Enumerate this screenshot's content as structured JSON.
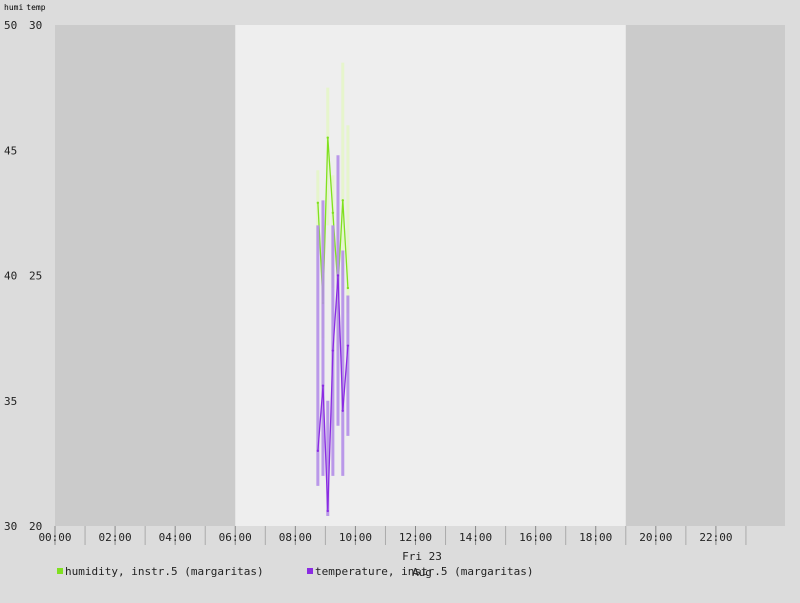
{
  "chart_data": {
    "type": "line",
    "axis_units": [
      "humi",
      "temp"
    ],
    "y_left": {
      "ticks": [
        30,
        35,
        40,
        45,
        50
      ],
      "range": [
        30,
        50
      ]
    },
    "y_right": {
      "ticks": [
        20,
        25,
        30
      ],
      "range": [
        20,
        30
      ]
    },
    "x": {
      "range_hours": [
        0,
        24.3
      ],
      "ticks": [
        "00:00",
        "02:00",
        "04:00",
        "06:00",
        "08:00",
        "10:00",
        "12:00",
        "14:00",
        "16:00",
        "18:00",
        "20:00",
        "22:00"
      ],
      "date_label": "Fri 23",
      "month_label": "Aug"
    },
    "night_shading": {
      "night_before_until_hour": 6.0,
      "night_after_from_hour": 19.0
    },
    "grid": false,
    "legend_position": "bottom",
    "series": [
      {
        "name": "humidity, instr.5 (margaritas)",
        "axis": "left",
        "color": "#80e020",
        "band_color": "#e4f5c8",
        "points": [
          {
            "t": 8.75,
            "v": 42.9,
            "lo": 41.2,
            "hi": 44.2
          },
          {
            "t": 8.92,
            "v": 38.9,
            "lo": 37.5,
            "hi": 42.0
          },
          {
            "t": 9.08,
            "v": 45.5,
            "lo": 42.0,
            "hi": 47.5
          },
          {
            "t": 9.25,
            "v": 42.5,
            "lo": 39.5,
            "hi": 44.0
          },
          {
            "t": 9.42,
            "v": 39.5,
            "lo": 37.0,
            "hi": 42.5
          },
          {
            "t": 9.58,
            "v": 43.0,
            "lo": 40.0,
            "hi": 48.5
          },
          {
            "t": 9.75,
            "v": 39.5,
            "lo": 38.5,
            "hi": 46.0
          }
        ]
      },
      {
        "name": "temperature, instr.5 (margaritas)",
        "axis": "right",
        "color": "#8a2be2",
        "band_color": "#b48ee8",
        "points": [
          {
            "t": 8.75,
            "v": 21.5,
            "lo": 20.8,
            "hi": 26.0
          },
          {
            "t": 8.92,
            "v": 22.8,
            "lo": 21.0,
            "hi": 26.5
          },
          {
            "t": 9.08,
            "v": 20.3,
            "lo": 20.2,
            "hi": 22.5
          },
          {
            "t": 9.25,
            "v": 23.5,
            "lo": 21.0,
            "hi": 26.0
          },
          {
            "t": 9.42,
            "v": 25.0,
            "lo": 22.0,
            "hi": 27.4
          },
          {
            "t": 9.58,
            "v": 22.3,
            "lo": 21.0,
            "hi": 25.5
          },
          {
            "t": 9.75,
            "v": 23.6,
            "lo": 21.8,
            "hi": 24.6
          }
        ]
      }
    ]
  }
}
